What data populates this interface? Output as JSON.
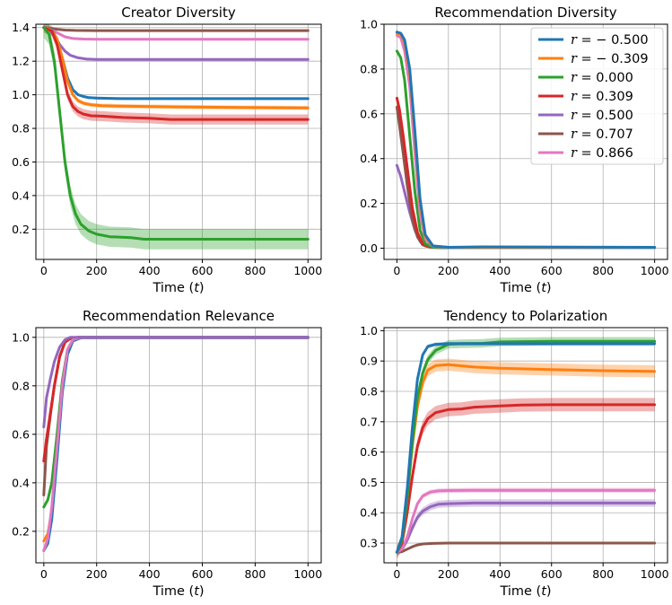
{
  "colors": {
    "-0.500": "#1f77b4",
    "-0.309": "#ff7f0e",
    "0.000": "#2ca02c",
    "0.309": "#d62728",
    "0.500": "#9467bd",
    "0.707": "#8c564b",
    "0.866": "#e377c2"
  },
  "legend": {
    "placement": "upper-right of Recommendation Diversity panel",
    "symbol": "r",
    "entries": [
      "− 0.500",
      "− 0.309",
      "0.000",
      "0.309",
      "0.500",
      "0.707",
      "0.866"
    ]
  },
  "xlabel_prefix": "Time (",
  "xlabel_var": "t",
  "xlabel_suffix": ")",
  "chart_data": [
    {
      "type": "line",
      "title": "Creator Diversity",
      "xlabel": "Time (t)",
      "xlim": [
        -30,
        1050
      ],
      "ylim": [
        0.02,
        1.42
      ],
      "xticks": [
        0,
        200,
        400,
        600,
        800,
        1000
      ],
      "yticks": [
        0.2,
        0.4,
        0.6,
        0.8,
        1.0,
        1.2,
        1.4
      ],
      "ytick_labels": [
        "0.2",
        "0.4",
        "0.6",
        "0.8",
        "1.0",
        "1.2",
        "1.4"
      ],
      "grid": true,
      "series": [
        {
          "key": "0.707",
          "x": [
            0,
            20,
            50,
            80,
            120,
            200,
            400,
            1000
          ],
          "y": [
            1.4,
            1.398,
            1.39,
            1.385,
            1.383,
            1.382,
            1.382,
            1.382
          ],
          "band": 0.005
        },
        {
          "key": "0.866",
          "x": [
            0,
            20,
            50,
            80,
            110,
            150,
            200,
            400,
            1000
          ],
          "y": [
            1.4,
            1.395,
            1.37,
            1.345,
            1.335,
            1.332,
            1.331,
            1.331,
            1.331
          ],
          "band": 0.005
        },
        {
          "key": "0.500",
          "x": [
            0,
            20,
            40,
            60,
            80,
            100,
            130,
            160,
            200,
            300,
            1000
          ],
          "y": [
            1.4,
            1.39,
            1.35,
            1.3,
            1.26,
            1.235,
            1.22,
            1.213,
            1.21,
            1.21,
            1.21
          ],
          "band": 0.008
        },
        {
          "key": "-0.500",
          "x": [
            0,
            30,
            50,
            70,
            90,
            110,
            130,
            150,
            170,
            200,
            300,
            1000
          ],
          "y": [
            1.4,
            1.39,
            1.33,
            1.22,
            1.1,
            1.03,
            1.0,
            0.99,
            0.983,
            0.98,
            0.977,
            0.977
          ],
          "band": 0.008
        },
        {
          "key": "-0.309",
          "x": [
            0,
            30,
            50,
            70,
            90,
            110,
            130,
            150,
            180,
            220,
            300,
            500,
            700,
            1000
          ],
          "y": [
            1.4,
            1.385,
            1.33,
            1.22,
            1.08,
            1.0,
            0.965,
            0.95,
            0.94,
            0.935,
            0.932,
            0.928,
            0.925,
            0.922
          ],
          "band": 0.012
        },
        {
          "key": "0.309",
          "x": [
            0,
            30,
            50,
            70,
            90,
            110,
            130,
            150,
            180,
            220,
            300,
            400,
            480,
            600,
            800,
            1000
          ],
          "y": [
            1.4,
            1.38,
            1.3,
            1.15,
            1.0,
            0.93,
            0.9,
            0.885,
            0.875,
            0.873,
            0.865,
            0.86,
            0.853,
            0.853,
            0.853,
            0.853
          ],
          "band": 0.03
        },
        {
          "key": "0.000",
          "x": [
            0,
            20,
            40,
            60,
            80,
            100,
            120,
            140,
            170,
            200,
            250,
            330,
            380,
            500,
            700,
            1000
          ],
          "y": [
            1.4,
            1.36,
            1.2,
            0.9,
            0.6,
            0.4,
            0.29,
            0.23,
            0.19,
            0.17,
            0.155,
            0.15,
            0.14,
            0.14,
            0.14,
            0.14
          ],
          "band": 0.06
        }
      ]
    },
    {
      "type": "line",
      "title": "Recommendation Diversity",
      "xlabel": "Time (t)",
      "xlim": [
        -50,
        1050
      ],
      "ylim": [
        -0.05,
        1.0
      ],
      "xticks": [
        0,
        200,
        400,
        600,
        800,
        1000
      ],
      "yticks": [
        0.0,
        0.2,
        0.4,
        0.6,
        0.8,
        1.0
      ],
      "ytick_labels": [
        "0.0",
        "0.2",
        "0.4",
        "0.6",
        "0.8",
        "1.0"
      ],
      "grid": true,
      "series": [
        {
          "key": "0.500",
          "x": [
            0,
            15,
            30,
            50,
            70,
            90,
            110,
            140,
            200,
            1000
          ],
          "y": [
            0.37,
            0.32,
            0.25,
            0.16,
            0.08,
            0.03,
            0.01,
            0.003,
            0.002,
            0.002
          ],
          "band": 0.005
        },
        {
          "key": "0.707",
          "x": [
            0,
            10,
            25,
            40,
            60,
            80,
            100,
            130,
            200,
            1000
          ],
          "y": [
            0.63,
            0.55,
            0.42,
            0.28,
            0.13,
            0.05,
            0.015,
            0.004,
            0.002,
            0.002
          ],
          "band": 0.005
        },
        {
          "key": "0.309",
          "x": [
            0,
            10,
            25,
            40,
            60,
            80,
            100,
            130,
            200,
            1000
          ],
          "y": [
            0.67,
            0.62,
            0.5,
            0.36,
            0.18,
            0.07,
            0.02,
            0.005,
            0.003,
            0.003
          ],
          "band": 0.005
        },
        {
          "key": "0.000",
          "x": [
            0,
            15,
            30,
            50,
            70,
            90,
            110,
            140,
            200,
            1000
          ],
          "y": [
            0.88,
            0.85,
            0.75,
            0.5,
            0.25,
            0.08,
            0.02,
            0.004,
            0.002,
            0.002
          ],
          "band": 0.005
        },
        {
          "key": "0.866",
          "x": [
            0,
            15,
            30,
            50,
            70,
            90,
            110,
            140,
            200,
            1000
          ],
          "y": [
            0.95,
            0.94,
            0.88,
            0.72,
            0.42,
            0.15,
            0.04,
            0.008,
            0.003,
            0.003
          ],
          "band": 0.005
        },
        {
          "key": "-0.309",
          "x": [
            0,
            15,
            30,
            50,
            70,
            90,
            110,
            140,
            200,
            1000
          ],
          "y": [
            0.96,
            0.955,
            0.92,
            0.78,
            0.5,
            0.2,
            0.05,
            0.01,
            0.004,
            0.004
          ],
          "band": 0.005
        },
        {
          "key": "-0.500",
          "x": [
            0,
            15,
            30,
            50,
            70,
            90,
            110,
            140,
            200,
            330,
            1000
          ],
          "y": [
            0.965,
            0.96,
            0.93,
            0.8,
            0.52,
            0.22,
            0.06,
            0.01,
            0.004,
            0.006,
            0.004
          ],
          "band": 0.005
        }
      ]
    },
    {
      "type": "line",
      "title": "Recommendation Relevance",
      "xlabel": "Time (t)",
      "xlim": [
        -30,
        1050
      ],
      "ylim": [
        0.07,
        1.04
      ],
      "xticks": [
        0,
        200,
        400,
        600,
        800,
        1000
      ],
      "yticks": [
        0.2,
        0.4,
        0.6,
        0.8,
        1.0
      ],
      "ytick_labels": [
        "0.2",
        "0.4",
        "0.6",
        "0.8",
        "1.0"
      ],
      "grid": true,
      "series": [
        {
          "key": "0.707",
          "x": [
            0,
            10,
            25,
            40,
            60,
            80,
            100,
            130,
            200,
            1000
          ],
          "y": [
            0.35,
            0.55,
            0.68,
            0.8,
            0.92,
            0.98,
            0.995,
            1.0,
            1.0,
            1.0
          ],
          "band": 0.004
        },
        {
          "key": "0.309",
          "x": [
            0,
            10,
            25,
            40,
            60,
            80,
            100,
            130,
            200,
            1000
          ],
          "y": [
            0.49,
            0.58,
            0.69,
            0.8,
            0.92,
            0.98,
            0.995,
            1.0,
            1.0,
            1.0
          ],
          "band": 0.004
        },
        {
          "key": "0.000",
          "x": [
            0,
            15,
            30,
            50,
            70,
            90,
            110,
            140,
            200,
            1000
          ],
          "y": [
            0.3,
            0.33,
            0.4,
            0.6,
            0.82,
            0.95,
            0.99,
            1.0,
            1.0,
            1.0
          ],
          "band": 0.004
        },
        {
          "key": "-0.309",
          "x": [
            0,
            15,
            30,
            50,
            70,
            90,
            110,
            140,
            200,
            1000
          ],
          "y": [
            0.16,
            0.19,
            0.28,
            0.52,
            0.78,
            0.94,
            0.985,
            0.998,
            0.998,
            0.998
          ],
          "band": 0.004
        },
        {
          "key": "-0.500",
          "x": [
            0,
            15,
            30,
            50,
            70,
            90,
            110,
            140,
            200,
            1000
          ],
          "y": [
            0.12,
            0.15,
            0.25,
            0.5,
            0.77,
            0.93,
            0.985,
            0.998,
            0.998,
            0.998
          ],
          "band": 0.004
        },
        {
          "key": "0.866",
          "x": [
            0,
            15,
            30,
            50,
            70,
            90,
            110,
            140,
            200,
            1000
          ],
          "y": [
            0.12,
            0.17,
            0.3,
            0.55,
            0.8,
            0.95,
            0.99,
            1.0,
            1.0,
            1.0
          ],
          "band": 0.004
        },
        {
          "key": "0.500",
          "x": [
            0,
            10,
            25,
            40,
            60,
            80,
            100,
            130,
            200,
            1000
          ],
          "y": [
            0.63,
            0.75,
            0.83,
            0.9,
            0.96,
            0.99,
            1.0,
            1.0,
            1.0,
            1.0
          ],
          "band": 0.004
        }
      ]
    },
    {
      "type": "line",
      "title": "Tendency to Polarization",
      "xlabel": "Time (t)",
      "xlim": [
        -50,
        1050
      ],
      "ylim": [
        0.235,
        1.01
      ],
      "xticks": [
        0,
        200,
        400,
        600,
        800,
        1000
      ],
      "yticks": [
        0.3,
        0.4,
        0.5,
        0.6,
        0.7,
        0.8,
        0.9,
        1.0
      ],
      "ytick_labels": [
        "0.3",
        "0.4",
        "0.5",
        "0.6",
        "0.7",
        "0.8",
        "0.9",
        "1.0"
      ],
      "grid": true,
      "series": [
        {
          "key": "0.707",
          "x": [
            0,
            20,
            40,
            60,
            80,
            100,
            140,
            200,
            1000
          ],
          "y": [
            0.27,
            0.272,
            0.28,
            0.288,
            0.294,
            0.297,
            0.299,
            0.3,
            0.3
          ],
          "band": 0.003
        },
        {
          "key": "0.500",
          "x": [
            0,
            20,
            40,
            60,
            80,
            100,
            130,
            160,
            200,
            300,
            1000
          ],
          "y": [
            0.27,
            0.28,
            0.31,
            0.35,
            0.385,
            0.405,
            0.42,
            0.428,
            0.43,
            0.432,
            0.432
          ],
          "band": 0.012
        },
        {
          "key": "0.866",
          "x": [
            0,
            20,
            40,
            60,
            80,
            100,
            130,
            160,
            200,
            300,
            1000
          ],
          "y": [
            0.27,
            0.28,
            0.32,
            0.38,
            0.43,
            0.455,
            0.468,
            0.472,
            0.473,
            0.474,
            0.474
          ],
          "band": 0.008
        },
        {
          "key": "0.309",
          "x": [
            0,
            20,
            40,
            60,
            80,
            100,
            120,
            150,
            200,
            250,
            300,
            400,
            480,
            600,
            800,
            1000
          ],
          "y": [
            0.27,
            0.3,
            0.4,
            0.52,
            0.62,
            0.68,
            0.71,
            0.73,
            0.74,
            0.742,
            0.748,
            0.752,
            0.755,
            0.756,
            0.756,
            0.756
          ],
          "band": 0.022
        },
        {
          "key": "-0.309",
          "x": [
            0,
            20,
            40,
            60,
            80,
            100,
            120,
            150,
            200,
            300,
            400,
            600,
            800,
            1000
          ],
          "y": [
            0.27,
            0.31,
            0.45,
            0.62,
            0.75,
            0.83,
            0.87,
            0.885,
            0.888,
            0.88,
            0.876,
            0.872,
            0.868,
            0.866
          ],
          "band": 0.02
        },
        {
          "key": "0.000",
          "x": [
            0,
            20,
            40,
            60,
            80,
            100,
            120,
            150,
            200,
            250,
            330,
            400,
            600,
            1000
          ],
          "y": [
            0.27,
            0.31,
            0.45,
            0.63,
            0.78,
            0.86,
            0.905,
            0.935,
            0.955,
            0.957,
            0.958,
            0.963,
            0.965,
            0.965
          ],
          "band": 0.014
        },
        {
          "key": "-0.500",
          "x": [
            0,
            20,
            40,
            60,
            80,
            100,
            120,
            150,
            200,
            300,
            1000
          ],
          "y": [
            0.27,
            0.32,
            0.48,
            0.68,
            0.84,
            0.92,
            0.948,
            0.955,
            0.957,
            0.957,
            0.957
          ],
          "band": 0.006
        }
      ]
    }
  ]
}
